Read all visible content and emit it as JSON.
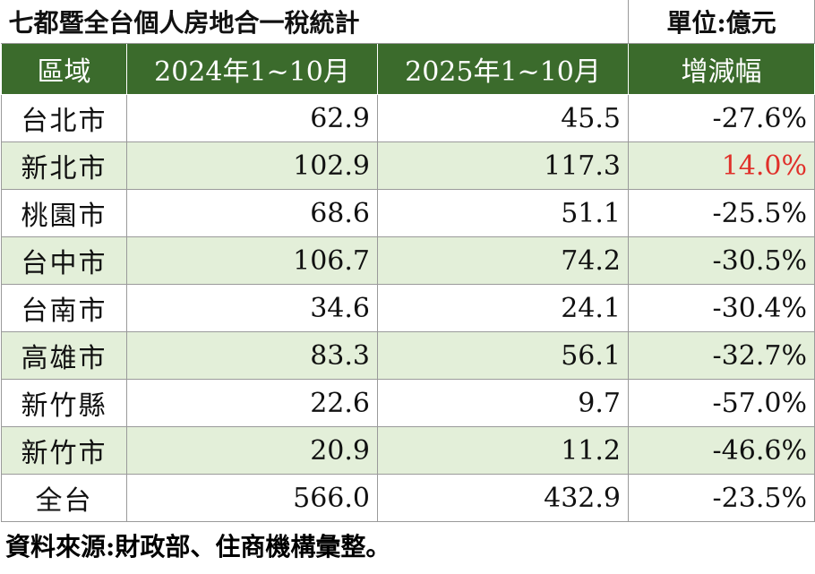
{
  "title": "七都暨全台個人房地合一稅統計",
  "unit": "單位:億元",
  "header": [
    "區域",
    "2024年1~10月",
    "2025年1~10月",
    "增減幅"
  ],
  "rows": [
    [
      "台北市",
      "62.9",
      "45.5",
      "-27.6%"
    ],
    [
      "新北市",
      "102.9",
      "117.3",
      "14.0%"
    ],
    [
      "桃園市",
      "68.6",
      "51.1",
      "-25.5%"
    ],
    [
      "台中市",
      "106.7",
      "74.2",
      "-30.5%"
    ],
    [
      "台南市",
      "34.6",
      "24.1",
      "-30.4%"
    ],
    [
      "高雄市",
      "83.3",
      "56.1",
      "-32.7%"
    ],
    [
      "新竹縣",
      "22.6",
      "9.7",
      "-57.0%"
    ],
    [
      "新竹市",
      "20.9",
      "11.2",
      "-46.6%"
    ],
    [
      "全台",
      "566.0",
      "432.9",
      "-23.5%"
    ]
  ],
  "highlight": {
    "row": 1,
    "col": 3,
    "color": "#e0302a"
  },
  "source": "資料來源:財政部、住商機構彙整。"
}
